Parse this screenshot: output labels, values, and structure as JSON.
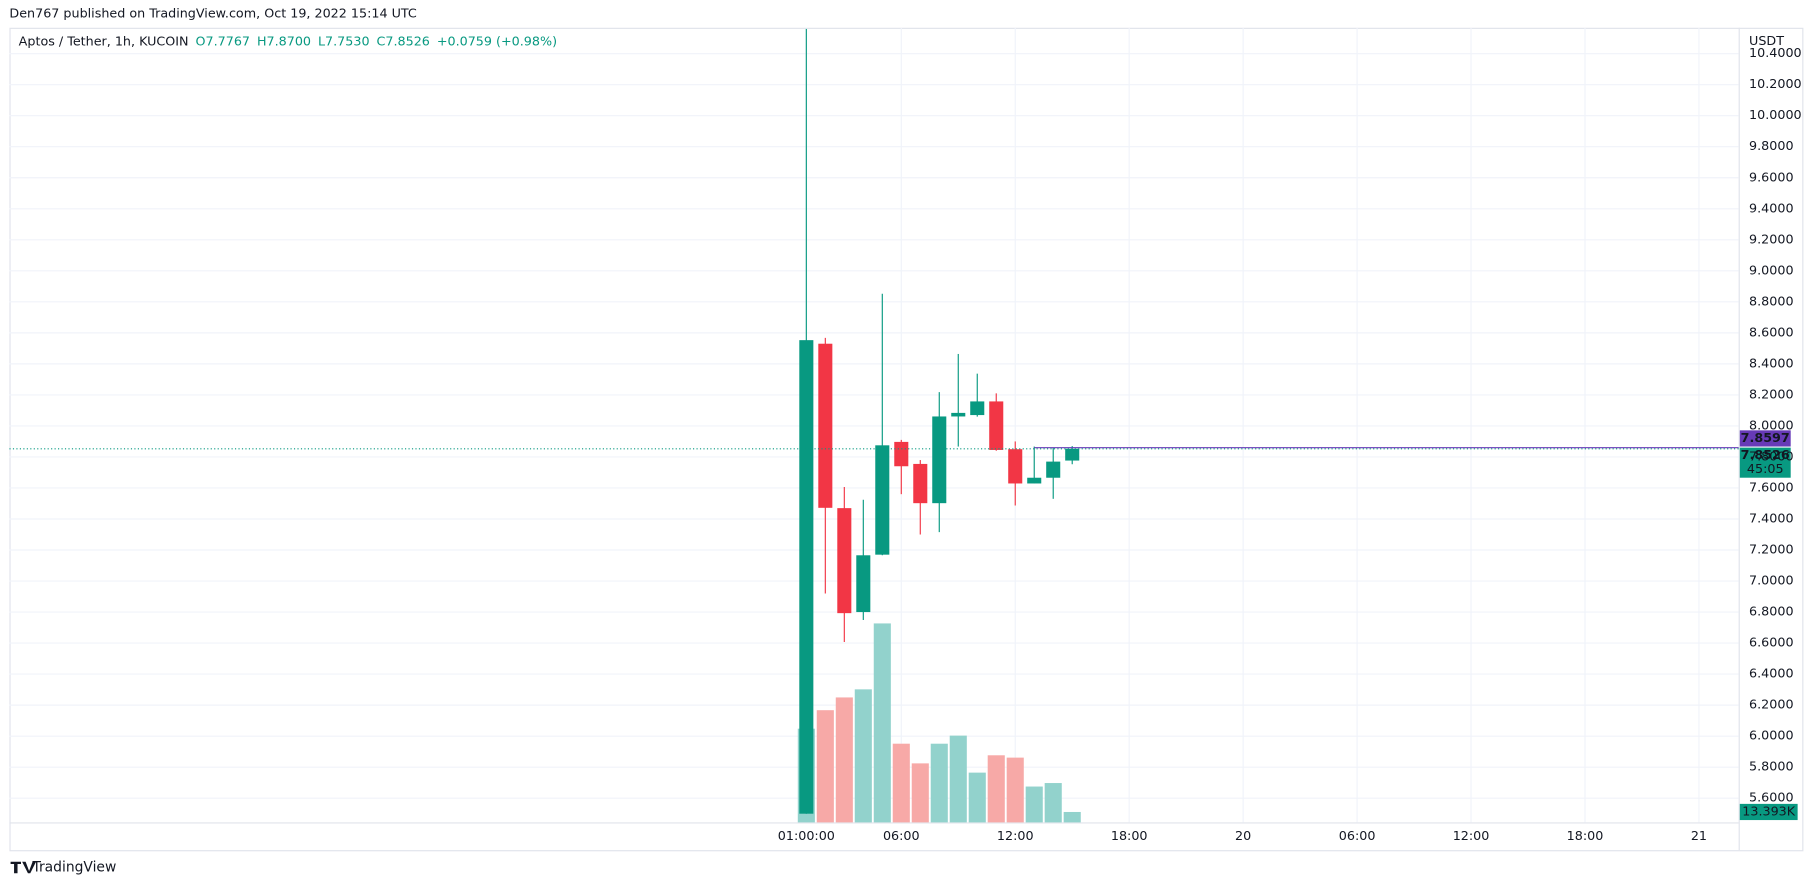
{
  "chart_data": {
    "type": "candlestick",
    "header": "Den767 published on TradingView.com, Oct 19, 2022 15:14 UTC",
    "symbol": "Aptos / Tether, 1h, KUCOIN",
    "legend_values": [
      "O7.7767",
      "H7.8700",
      "L7.7530",
      "C7.8526",
      "+0.0759 (+0.98%)"
    ],
    "y_unit": "USDT",
    "footer": "TradingView",
    "up_color": "#089981",
    "down_color": "#f23645",
    "volume_up_color": "#92d2cc",
    "volume_down_color": "#f7a9a7",
    "grid": true,
    "xlim": [
      -41.96,
      49.09
    ],
    "xticks": [
      {
        "value": 0,
        "label": "01:00:00"
      },
      {
        "value": 5,
        "label": "06:00"
      },
      {
        "value": 11,
        "label": "12:00"
      },
      {
        "value": 17,
        "label": "18:00"
      },
      {
        "value": 23,
        "label": "20"
      },
      {
        "value": 29,
        "label": "06:00"
      },
      {
        "value": 35,
        "label": "12:00"
      },
      {
        "value": 41,
        "label": "18:00"
      },
      {
        "value": 47,
        "label": "21"
      }
    ],
    "ylim": [
      5.444,
      10.567
    ],
    "yticks": [
      {
        "value": 5.6,
        "label": "5.6000"
      },
      {
        "value": 5.8,
        "label": "5.8000"
      },
      {
        "value": 6.0,
        "label": "6.0000"
      },
      {
        "value": 6.2,
        "label": "6.2000"
      },
      {
        "value": 6.4,
        "label": "6.4000"
      },
      {
        "value": 6.6,
        "label": "6.6000"
      },
      {
        "value": 6.8,
        "label": "6.8000"
      },
      {
        "value": 7.0,
        "label": "7.0000"
      },
      {
        "value": 7.2,
        "label": "7.2000"
      },
      {
        "value": 7.4,
        "label": "7.4000"
      },
      {
        "value": 7.6,
        "label": "7.6000"
      },
      {
        "value": 7.8,
        "label": "7.8000"
      },
      {
        "value": 8.0,
        "label": "8.0000"
      },
      {
        "value": 8.2,
        "label": "8.2000"
      },
      {
        "value": 8.4,
        "label": "8.4000"
      },
      {
        "value": 8.6,
        "label": "8.6000"
      },
      {
        "value": 8.8,
        "label": "8.8000"
      },
      {
        "value": 9.0,
        "label": "9.0000"
      },
      {
        "value": 9.2,
        "label": "9.2000"
      },
      {
        "value": 9.4,
        "label": "9.4000"
      },
      {
        "value": 9.6,
        "label": "9.6000"
      },
      {
        "value": 9.8,
        "label": "9.8000"
      },
      {
        "value": 10.0,
        "label": "10.0000"
      },
      {
        "value": 10.2,
        "label": "10.2000"
      },
      {
        "value": 10.4,
        "label": "10.4000"
      }
    ],
    "x": [
      0,
      1,
      2,
      3,
      4,
      5,
      6,
      7,
      8,
      9,
      10,
      11,
      12,
      13,
      14
    ],
    "open": [
      5.5,
      8.53,
      7.47,
      6.8,
      7.17,
      7.897,
      7.755,
      7.502,
      8.061,
      8.07,
      8.158,
      7.85,
      7.629,
      7.666,
      7.7767
    ],
    "high": [
      10.56,
      8.568,
      7.606,
      7.524,
      8.852,
      7.91,
      7.78,
      8.218,
      8.464,
      8.337,
      8.21,
      7.9,
      7.867,
      7.86,
      7.87
    ],
    "low": [
      5.5,
      6.92,
      6.607,
      6.749,
      7.166,
      7.56,
      7.3,
      7.315,
      7.867,
      8.06,
      7.84,
      7.487,
      7.629,
      7.53,
      7.753
    ],
    "close": [
      8.553,
      7.472,
      6.793,
      7.166,
      7.875,
      7.74,
      7.502,
      8.061,
      8.084,
      8.158,
      7.845,
      7.629,
      7.666,
      7.77,
      7.8526
    ],
    "volume": [
      120500,
      144300,
      160700,
      171100,
      255900,
      101200,
      75900,
      101200,
      111600,
      64000,
      86300,
      83300,
      46100,
      50600,
      13393
    ],
    "volume_value_labels": [
      null,
      null,
      null,
      null,
      null,
      null,
      null,
      null,
      null,
      null,
      null,
      null,
      null,
      null,
      "13.393K"
    ],
    "volume_lim": [
      0,
      1022000
    ],
    "price_lines": [
      {
        "value": 7.8597,
        "color": "#673ab7",
        "start": 12
      },
      {
        "value": 7.8526,
        "color": "#089981",
        "countdown": "45:05"
      }
    ]
  }
}
